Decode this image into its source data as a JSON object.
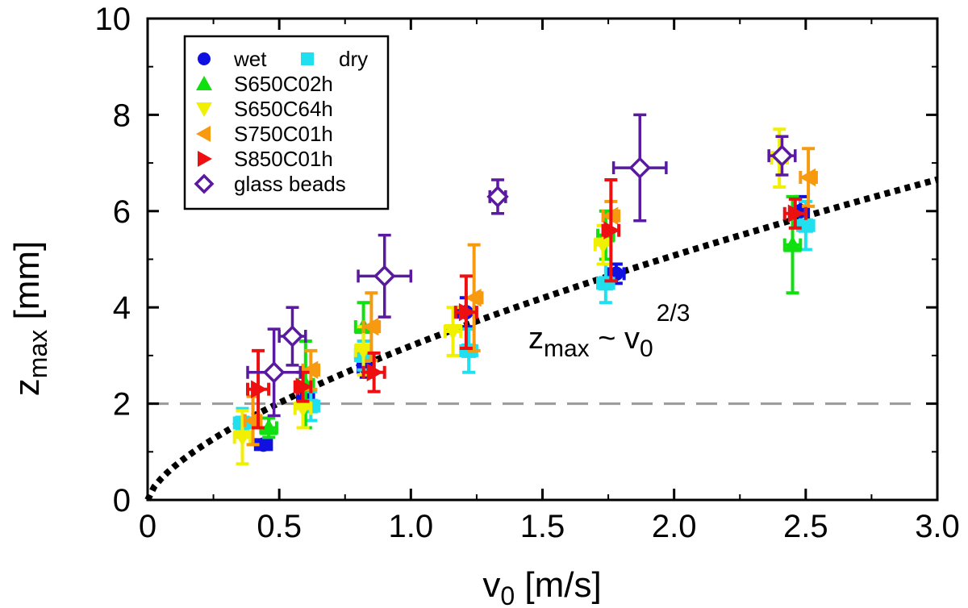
{
  "chart_data": {
    "type": "scatter",
    "xlabel": "v",
    "xlabel_sub": "0",
    "xlabel_unit": "[m/s]",
    "ylabel": "z",
    "ylabel_sub": "max",
    "ylabel_unit": "[mm]",
    "xlim": [
      0,
      3.0
    ],
    "ylim": [
      0,
      10
    ],
    "x_ticks": [
      0,
      0.5,
      1.0,
      1.5,
      2.0,
      2.5,
      3.0
    ],
    "x_tick_labels": [
      "0",
      "0.5",
      "1.0",
      "1.5",
      "2.0",
      "2.5",
      "3.0"
    ],
    "y_ticks": [
      0,
      2,
      4,
      6,
      8,
      10
    ],
    "y_tick_labels": [
      "0",
      "2",
      "4",
      "6",
      "8",
      "10"
    ],
    "legend_position": "top-left",
    "reference_line": {
      "y": 2,
      "style": "dashed",
      "color": "#999999"
    },
    "fit_curve": {
      "exponent": 0.6667,
      "coefficient": 3.2,
      "style": "dotted",
      "color": "#000000"
    },
    "annotation": {
      "base": "z",
      "base_sub": "max",
      "operator": " ~ v",
      "operator_sub": "0",
      "sup": "2/3",
      "x": 1.45,
      "y": 3.0
    },
    "series": [
      {
        "name": "wet",
        "marker": "circle",
        "color": "#1010e0",
        "points": [
          {
            "x": 0.44,
            "y": 1.15,
            "yerr": 0.1,
            "xerr": 0.03
          },
          {
            "x": 0.6,
            "y": 2.1,
            "yerr": 0.2,
            "xerr": 0.03
          },
          {
            "x": 0.83,
            "y": 2.75,
            "yerr": 0.2,
            "xerr": 0.03
          },
          {
            "x": 1.21,
            "y": 3.9,
            "yerr": 0.3,
            "xerr": 0.03
          },
          {
            "x": 1.78,
            "y": 4.7,
            "yerr": 0.2,
            "xerr": 0.03
          },
          {
            "x": 2.48,
            "y": 6.0,
            "yerr": 0.3,
            "xerr": 0.03
          }
        ]
      },
      {
        "name": "dry",
        "marker": "square",
        "color": "#20e0f0",
        "points": [
          {
            "x": 0.36,
            "y": 1.6,
            "yerr": 0.3,
            "xerr": 0.03
          },
          {
            "x": 0.62,
            "y": 1.95,
            "yerr": 0.3,
            "xerr": 0.03
          },
          {
            "x": 0.82,
            "y": 3.0,
            "yerr": 0.3,
            "xerr": 0.03
          },
          {
            "x": 1.22,
            "y": 3.1,
            "yerr": 0.45,
            "xerr": 0.03
          },
          {
            "x": 1.74,
            "y": 4.5,
            "yerr": 0.4,
            "xerr": 0.03
          },
          {
            "x": 2.5,
            "y": 5.7,
            "yerr": 0.5,
            "xerr": 0.03
          }
        ]
      },
      {
        "name": "S650C02h",
        "marker": "triangle-up",
        "color": "#10e010",
        "points": [
          {
            "x": 0.46,
            "y": 1.5,
            "yerr": 0.2,
            "xerr": 0.03
          },
          {
            "x": 0.6,
            "y": 2.4,
            "yerr": 0.9,
            "xerr": 0.03
          },
          {
            "x": 0.82,
            "y": 3.6,
            "yerr": 0.5,
            "xerr": 0.03
          },
          {
            "x": 1.74,
            "y": 5.5,
            "yerr": 0.5,
            "xerr": 0.03
          },
          {
            "x": 2.45,
            "y": 5.3,
            "yerr": 1.0,
            "xerr": 0.03
          }
        ]
      },
      {
        "name": "S650C64h",
        "marker": "triangle-down",
        "color": "#f0f000",
        "points": [
          {
            "x": 0.36,
            "y": 1.3,
            "yerr": 0.55,
            "xerr": 0.03
          },
          {
            "x": 0.59,
            "y": 1.9,
            "yerr": 0.4,
            "xerr": 0.03
          },
          {
            "x": 0.82,
            "y": 3.1,
            "yerr": 0.5,
            "xerr": 0.03
          },
          {
            "x": 1.16,
            "y": 3.5,
            "yerr": 0.5,
            "xerr": 0.03
          },
          {
            "x": 1.73,
            "y": 5.3,
            "yerr": 0.4,
            "xerr": 0.03
          },
          {
            "x": 2.4,
            "y": 7.1,
            "yerr": 0.6,
            "xerr": 0.03
          }
        ]
      },
      {
        "name": "S750C01h",
        "marker": "triangle-left",
        "color": "#f89a10",
        "points": [
          {
            "x": 0.4,
            "y": 1.65,
            "yerr": 0.5,
            "xerr": 0.03
          },
          {
            "x": 0.62,
            "y": 2.7,
            "yerr": 0.4,
            "xerr": 0.03
          },
          {
            "x": 0.85,
            "y": 3.6,
            "yerr": 0.7,
            "xerr": 0.03
          },
          {
            "x": 1.24,
            "y": 4.2,
            "yerr": 1.1,
            "xerr": 0.03
          },
          {
            "x": 1.76,
            "y": 5.9,
            "yerr": 0.3,
            "xerr": 0.03
          },
          {
            "x": 2.51,
            "y": 6.7,
            "yerr": 0.6,
            "xerr": 0.03
          }
        ]
      },
      {
        "name": "S850C01h",
        "marker": "triangle-right",
        "color": "#ee1010",
        "points": [
          {
            "x": 0.42,
            "y": 2.3,
            "yerr": 0.8,
            "xerr": 0.04
          },
          {
            "x": 0.59,
            "y": 2.35,
            "yerr": 0.3,
            "xerr": 0.03
          },
          {
            "x": 0.86,
            "y": 2.65,
            "yerr": 0.4,
            "xerr": 0.04
          },
          {
            "x": 1.21,
            "y": 3.9,
            "yerr": 0.75,
            "xerr": 0.04
          },
          {
            "x": 1.76,
            "y": 5.6,
            "yerr": 1.05,
            "xerr": 0.03
          },
          {
            "x": 2.46,
            "y": 5.95,
            "yerr": 0.3,
            "xerr": 0.04
          }
        ]
      },
      {
        "name": "glass beads",
        "marker": "diamond-open",
        "color": "#5a1aa0",
        "points": [
          {
            "x": 0.48,
            "y": 2.65,
            "yerr": 0.9,
            "xerr": 0.1
          },
          {
            "x": 0.55,
            "y": 3.4,
            "yerr": 0.6,
            "xerr": 0.05
          },
          {
            "x": 0.9,
            "y": 4.65,
            "yerr": 0.85,
            "xerr": 0.1
          },
          {
            "x": 1.33,
            "y": 6.3,
            "yerr": 0.35,
            "xerr": 0.03
          },
          {
            "x": 1.87,
            "y": 6.9,
            "yerr": 1.1,
            "xerr": 0.1
          },
          {
            "x": 2.41,
            "y": 7.15,
            "yerr": 0.4,
            "xerr": 0.05
          }
        ]
      }
    ]
  }
}
